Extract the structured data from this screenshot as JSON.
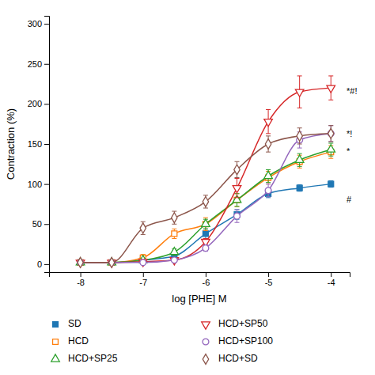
{
  "chart_data": {
    "type": "line",
    "title": "",
    "xlabel": "log [PHE] M",
    "ylabel": "Contraction (%)",
    "xlim": [
      -8.5,
      -3.7
    ],
    "ylim": [
      -10,
      310
    ],
    "xticks": [
      -8,
      -7,
      -6,
      -5,
      -4
    ],
    "yticks": [
      0,
      50,
      100,
      150,
      200,
      250,
      300
    ],
    "grid": false,
    "legend": "bottom",
    "x": [
      -8,
      -7.5,
      -7,
      -6.5,
      -6,
      -5.5,
      -5,
      -4.5,
      -4
    ],
    "series": [
      {
        "name": "SD",
        "marker": "filled-square",
        "values": [
          2,
          2,
          5,
          10,
          38,
          62,
          88,
          95,
          100
        ],
        "errors": [
          1,
          1,
          2,
          3,
          6,
          6,
          5,
          4,
          4
        ]
      },
      {
        "name": "HCD",
        "marker": "open-square",
        "values": [
          2,
          2,
          8,
          38,
          50,
          80,
          108,
          128,
          140
        ],
        "errors": [
          1,
          1,
          4,
          6,
          8,
          8,
          8,
          8,
          8
        ]
      },
      {
        "name": "HCD+SP25",
        "marker": "open-triangle-up",
        "values": [
          2,
          2,
          5,
          15,
          50,
          80,
          110,
          130,
          143
        ],
        "errors": [
          1,
          1,
          2,
          4,
          6,
          8,
          8,
          8,
          8
        ]
      },
      {
        "name": "HCD+SP50",
        "marker": "open-triangle-down",
        "values": [
          2,
          2,
          3,
          5,
          28,
          95,
          178,
          215,
          220
        ],
        "errors": [
          1,
          1,
          1,
          2,
          4,
          12,
          15,
          20,
          15
        ]
      },
      {
        "name": "HCD+SP100",
        "marker": "open-circle",
        "values": [
          2,
          2,
          2,
          5,
          20,
          60,
          92,
          155,
          163
        ],
        "errors": [
          1,
          1,
          1,
          2,
          4,
          8,
          8,
          10,
          10
        ]
      },
      {
        "name": "HCD+SD",
        "marker": "open-diamond",
        "values": [
          2,
          2,
          45,
          58,
          78,
          118,
          150,
          160,
          163
        ],
        "errors": [
          1,
          1,
          8,
          8,
          8,
          10,
          10,
          10,
          10
        ]
      }
    ],
    "annotations": [
      {
        "text": "*#!",
        "x": -3.75,
        "y": 215
      },
      {
        "text": "*!",
        "x": -3.75,
        "y": 162
      },
      {
        "text": "*",
        "x": -3.75,
        "y": 140
      },
      {
        "text": "#",
        "x": -3.75,
        "y": 80
      }
    ]
  }
}
